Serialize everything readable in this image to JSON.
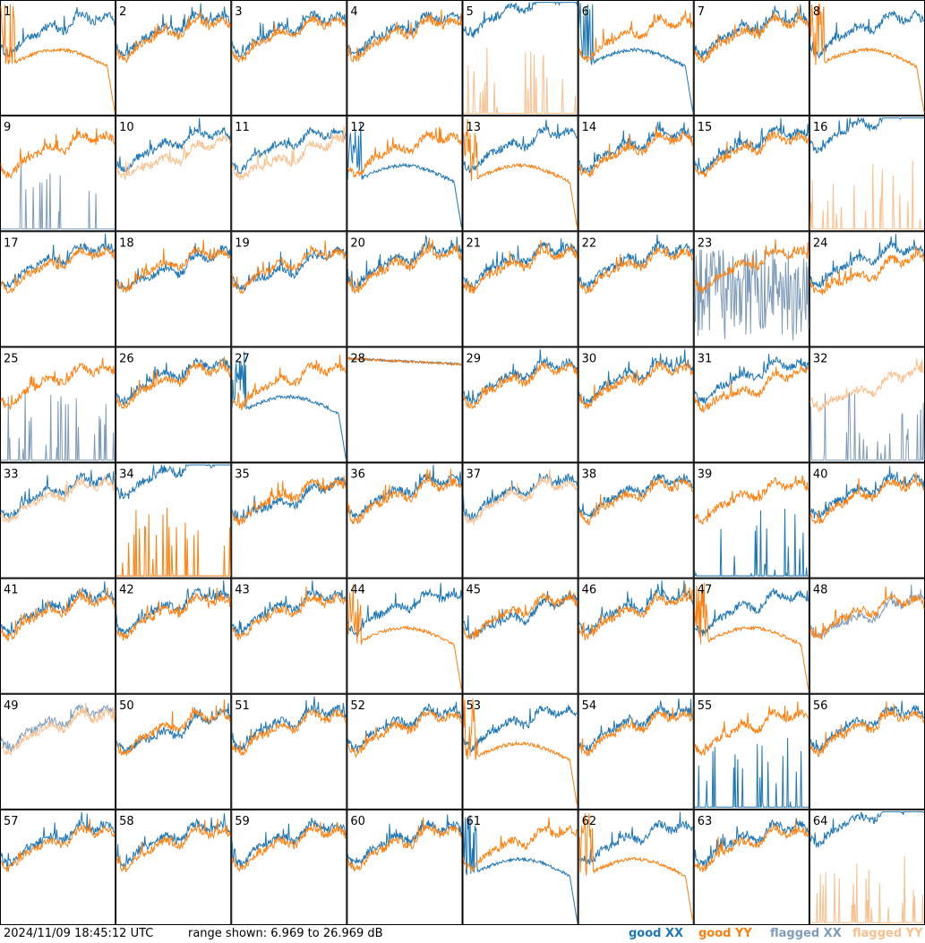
{
  "timestamp": "2024/11/09 18:45:12 UTC",
  "range_text": "range shown: 6.969 to 26.969 dB",
  "legend": {
    "good_xx": "good XX",
    "good_yy": "good YY",
    "flagged_xx": "flagged XX",
    "flagged_yy": "flagged YY"
  },
  "colors": {
    "good_xx": "#1f77b4",
    "good_yy": "#ff7f0e",
    "flagged_xx": "#7f9cb8",
    "flagged_yy": "#f9c08f"
  },
  "chart_data": {
    "type": "line",
    "layout": "8x8 small multiples",
    "ylim": [
      6.969,
      26.969
    ],
    "y_unit": "dB",
    "panels": [
      {
        "id": "1",
        "xx": "good",
        "yy": "good",
        "xx_style": "normal",
        "yy_style": "dropout"
      },
      {
        "id": "2",
        "xx": "good",
        "yy": "good",
        "xx_style": "normal",
        "yy_style": "normal"
      },
      {
        "id": "3",
        "xx": "good",
        "yy": "good",
        "xx_style": "normal",
        "yy_style": "normal"
      },
      {
        "id": "4",
        "xx": "good",
        "yy": "good",
        "xx_style": "normal",
        "yy_style": "normal"
      },
      {
        "id": "5",
        "xx": "good",
        "yy": "flagged",
        "xx_style": "high",
        "yy_style": "spiky"
      },
      {
        "id": "6",
        "xx": "good",
        "yy": "good",
        "xx_style": "dropout",
        "yy_style": "normal"
      },
      {
        "id": "7",
        "xx": "good",
        "yy": "good",
        "xx_style": "normal",
        "yy_style": "normal"
      },
      {
        "id": "8",
        "xx": "good",
        "yy": "good",
        "xx_style": "normal",
        "yy_style": "dropout"
      },
      {
        "id": "9",
        "xx": "flagged",
        "yy": "good",
        "xx_style": "spiky",
        "yy_style": "normal"
      },
      {
        "id": "10",
        "xx": "good",
        "yy": "flagged",
        "xx_style": "normal",
        "yy_style": "low"
      },
      {
        "id": "11",
        "xx": "good",
        "yy": "flagged",
        "xx_style": "normal",
        "yy_style": "low"
      },
      {
        "id": "12",
        "xx": "good",
        "yy": "good",
        "xx_style": "dropout",
        "yy_style": "normal"
      },
      {
        "id": "13",
        "xx": "good",
        "yy": "good",
        "xx_style": "normal",
        "yy_style": "dropout"
      },
      {
        "id": "14",
        "xx": "good",
        "yy": "good",
        "xx_style": "normal",
        "yy_style": "normal"
      },
      {
        "id": "15",
        "xx": "good",
        "yy": "good",
        "xx_style": "normal",
        "yy_style": "normal"
      },
      {
        "id": "16",
        "xx": "good",
        "yy": "flagged",
        "xx_style": "high",
        "yy_style": "spiky"
      },
      {
        "id": "17",
        "xx": "good",
        "yy": "good",
        "xx_style": "normal",
        "yy_style": "normal"
      },
      {
        "id": "18",
        "xx": "good",
        "yy": "good",
        "xx_style": "low",
        "yy_style": "normal"
      },
      {
        "id": "19",
        "xx": "good",
        "yy": "good",
        "xx_style": "low",
        "yy_style": "normal"
      },
      {
        "id": "20",
        "xx": "good",
        "yy": "good",
        "xx_style": "normal",
        "yy_style": "normal"
      },
      {
        "id": "21",
        "xx": "good",
        "yy": "good",
        "xx_style": "normal",
        "yy_style": "normal"
      },
      {
        "id": "22",
        "xx": "good",
        "yy": "good",
        "xx_style": "normal",
        "yy_style": "normal"
      },
      {
        "id": "23",
        "xx": "flagged",
        "yy": "good",
        "xx_style": "noisy",
        "yy_style": "normal"
      },
      {
        "id": "24",
        "xx": "good",
        "yy": "good",
        "xx_style": "normal",
        "yy_style": "low"
      },
      {
        "id": "25",
        "xx": "flagged",
        "yy": "good",
        "xx_style": "spiky",
        "yy_style": "normal"
      },
      {
        "id": "26",
        "xx": "good",
        "yy": "good",
        "xx_style": "normal",
        "yy_style": "normal"
      },
      {
        "id": "27",
        "xx": "good",
        "yy": "good",
        "xx_style": "dropout",
        "yy_style": "normal"
      },
      {
        "id": "28",
        "xx": "good",
        "yy": "good",
        "xx_style": "flat",
        "yy_style": "flat"
      },
      {
        "id": "29",
        "xx": "good",
        "yy": "good",
        "xx_style": "normal",
        "yy_style": "normal"
      },
      {
        "id": "30",
        "xx": "good",
        "yy": "good",
        "xx_style": "normal",
        "yy_style": "normal"
      },
      {
        "id": "31",
        "xx": "good",
        "yy": "good",
        "xx_style": "normal",
        "yy_style": "low"
      },
      {
        "id": "32",
        "xx": "flagged",
        "yy": "flagged",
        "xx_style": "spiky",
        "yy_style": "low"
      },
      {
        "id": "33",
        "xx": "good",
        "yy": "flagged",
        "xx_style": "normal",
        "yy_style": "normal"
      },
      {
        "id": "34",
        "xx": "good",
        "yy": "good",
        "xx_style": "high",
        "yy_style": "spiky"
      },
      {
        "id": "35",
        "xx": "good",
        "yy": "good",
        "xx_style": "low",
        "yy_style": "normal"
      },
      {
        "id": "36",
        "xx": "good",
        "yy": "good",
        "xx_style": "normal",
        "yy_style": "normal"
      },
      {
        "id": "37",
        "xx": "good",
        "yy": "flagged",
        "xx_style": "normal",
        "yy_style": "normal"
      },
      {
        "id": "38",
        "xx": "good",
        "yy": "good",
        "xx_style": "normal",
        "yy_style": "normal"
      },
      {
        "id": "39",
        "xx": "good",
        "yy": "good",
        "xx_style": "spiky",
        "yy_style": "normal"
      },
      {
        "id": "40",
        "xx": "good",
        "yy": "good",
        "xx_style": "normal",
        "yy_style": "normal"
      },
      {
        "id": "41",
        "xx": "good",
        "yy": "good",
        "xx_style": "normal",
        "yy_style": "normal"
      },
      {
        "id": "42",
        "xx": "good",
        "yy": "good",
        "xx_style": "normal",
        "yy_style": "normal"
      },
      {
        "id": "43",
        "xx": "good",
        "yy": "good",
        "xx_style": "normal",
        "yy_style": "normal"
      },
      {
        "id": "44",
        "xx": "good",
        "yy": "good",
        "xx_style": "normal",
        "yy_style": "dropout"
      },
      {
        "id": "45",
        "xx": "good",
        "yy": "good",
        "xx_style": "low",
        "yy_style": "normal"
      },
      {
        "id": "46",
        "xx": "good",
        "yy": "good",
        "xx_style": "normal",
        "yy_style": "normal"
      },
      {
        "id": "47",
        "xx": "good",
        "yy": "good",
        "xx_style": "normal",
        "yy_style": "dropout"
      },
      {
        "id": "48",
        "xx": "flagged",
        "yy": "good",
        "xx_style": "low",
        "yy_style": "normal"
      },
      {
        "id": "49",
        "xx": "flagged",
        "yy": "flagged",
        "xx_style": "normal",
        "yy_style": "normal"
      },
      {
        "id": "50",
        "xx": "good",
        "yy": "good",
        "xx_style": "low",
        "yy_style": "normal"
      },
      {
        "id": "51",
        "xx": "good",
        "yy": "good",
        "xx_style": "normal",
        "yy_style": "normal"
      },
      {
        "id": "52",
        "xx": "good",
        "yy": "good",
        "xx_style": "normal",
        "yy_style": "normal"
      },
      {
        "id": "53",
        "xx": "good",
        "yy": "good",
        "xx_style": "normal",
        "yy_style": "dropout"
      },
      {
        "id": "54",
        "xx": "good",
        "yy": "good",
        "xx_style": "normal",
        "yy_style": "normal"
      },
      {
        "id": "55",
        "xx": "good",
        "yy": "good",
        "xx_style": "spiky",
        "yy_style": "normal"
      },
      {
        "id": "56",
        "xx": "good",
        "yy": "good",
        "xx_style": "normal",
        "yy_style": "normal"
      },
      {
        "id": "57",
        "xx": "good",
        "yy": "good",
        "xx_style": "normal",
        "yy_style": "normal"
      },
      {
        "id": "58",
        "xx": "good",
        "yy": "good",
        "xx_style": "normal",
        "yy_style": "normal"
      },
      {
        "id": "59",
        "xx": "good",
        "yy": "good",
        "xx_style": "normal",
        "yy_style": "normal"
      },
      {
        "id": "60",
        "xx": "good",
        "yy": "good",
        "xx_style": "normal",
        "yy_style": "normal"
      },
      {
        "id": "61",
        "xx": "good",
        "yy": "good",
        "xx_style": "dropout",
        "yy_style": "normal"
      },
      {
        "id": "62",
        "xx": "good",
        "yy": "good",
        "xx_style": "normal",
        "yy_style": "dropout"
      },
      {
        "id": "63",
        "xx": "good",
        "yy": "good",
        "xx_style": "normal",
        "yy_style": "normal"
      },
      {
        "id": "64",
        "xx": "good",
        "yy": "flagged",
        "xx_style": "high",
        "yy_style": "spiky"
      }
    ]
  }
}
